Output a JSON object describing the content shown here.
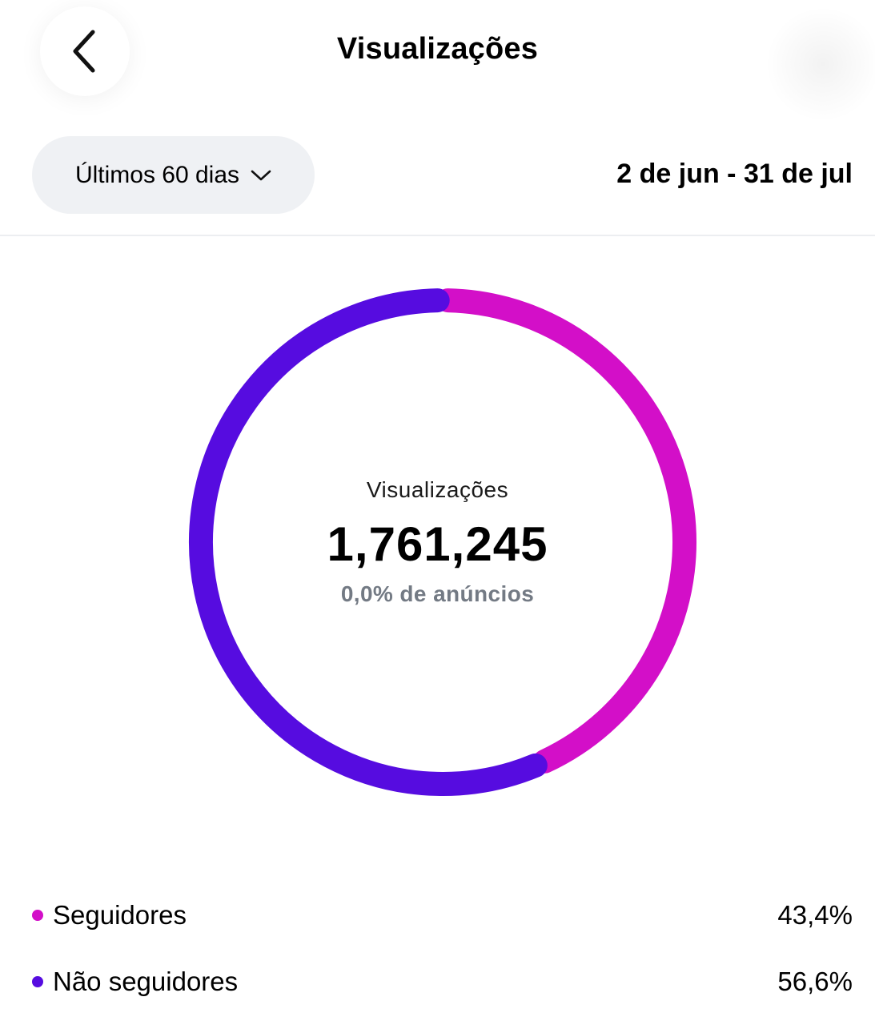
{
  "header": {
    "title": "Visualizações",
    "back_icon": "chevron-left-icon"
  },
  "filters": {
    "period_label": "Últimos 60 dias",
    "period_icon": "chevron-down-icon",
    "date_range": "2 de jun - 31 de jul"
  },
  "summary": {
    "label": "Visualizações",
    "total": "1,761,245",
    "ads_share": "0,0% de anúncios"
  },
  "colors": {
    "followers": "#d30fc8",
    "non_followers": "#560ce0"
  },
  "legend": [
    {
      "label": "Seguidores",
      "value": "43,4%"
    },
    {
      "label": "Não seguidores",
      "value": "56,6%"
    }
  ],
  "chart_data": {
    "type": "pie",
    "categories": [
      "Seguidores",
      "Não seguidores"
    ],
    "values": [
      43.4,
      56.6
    ],
    "unit": "%",
    "colors": [
      "#d30fc8",
      "#560ce0"
    ]
  }
}
